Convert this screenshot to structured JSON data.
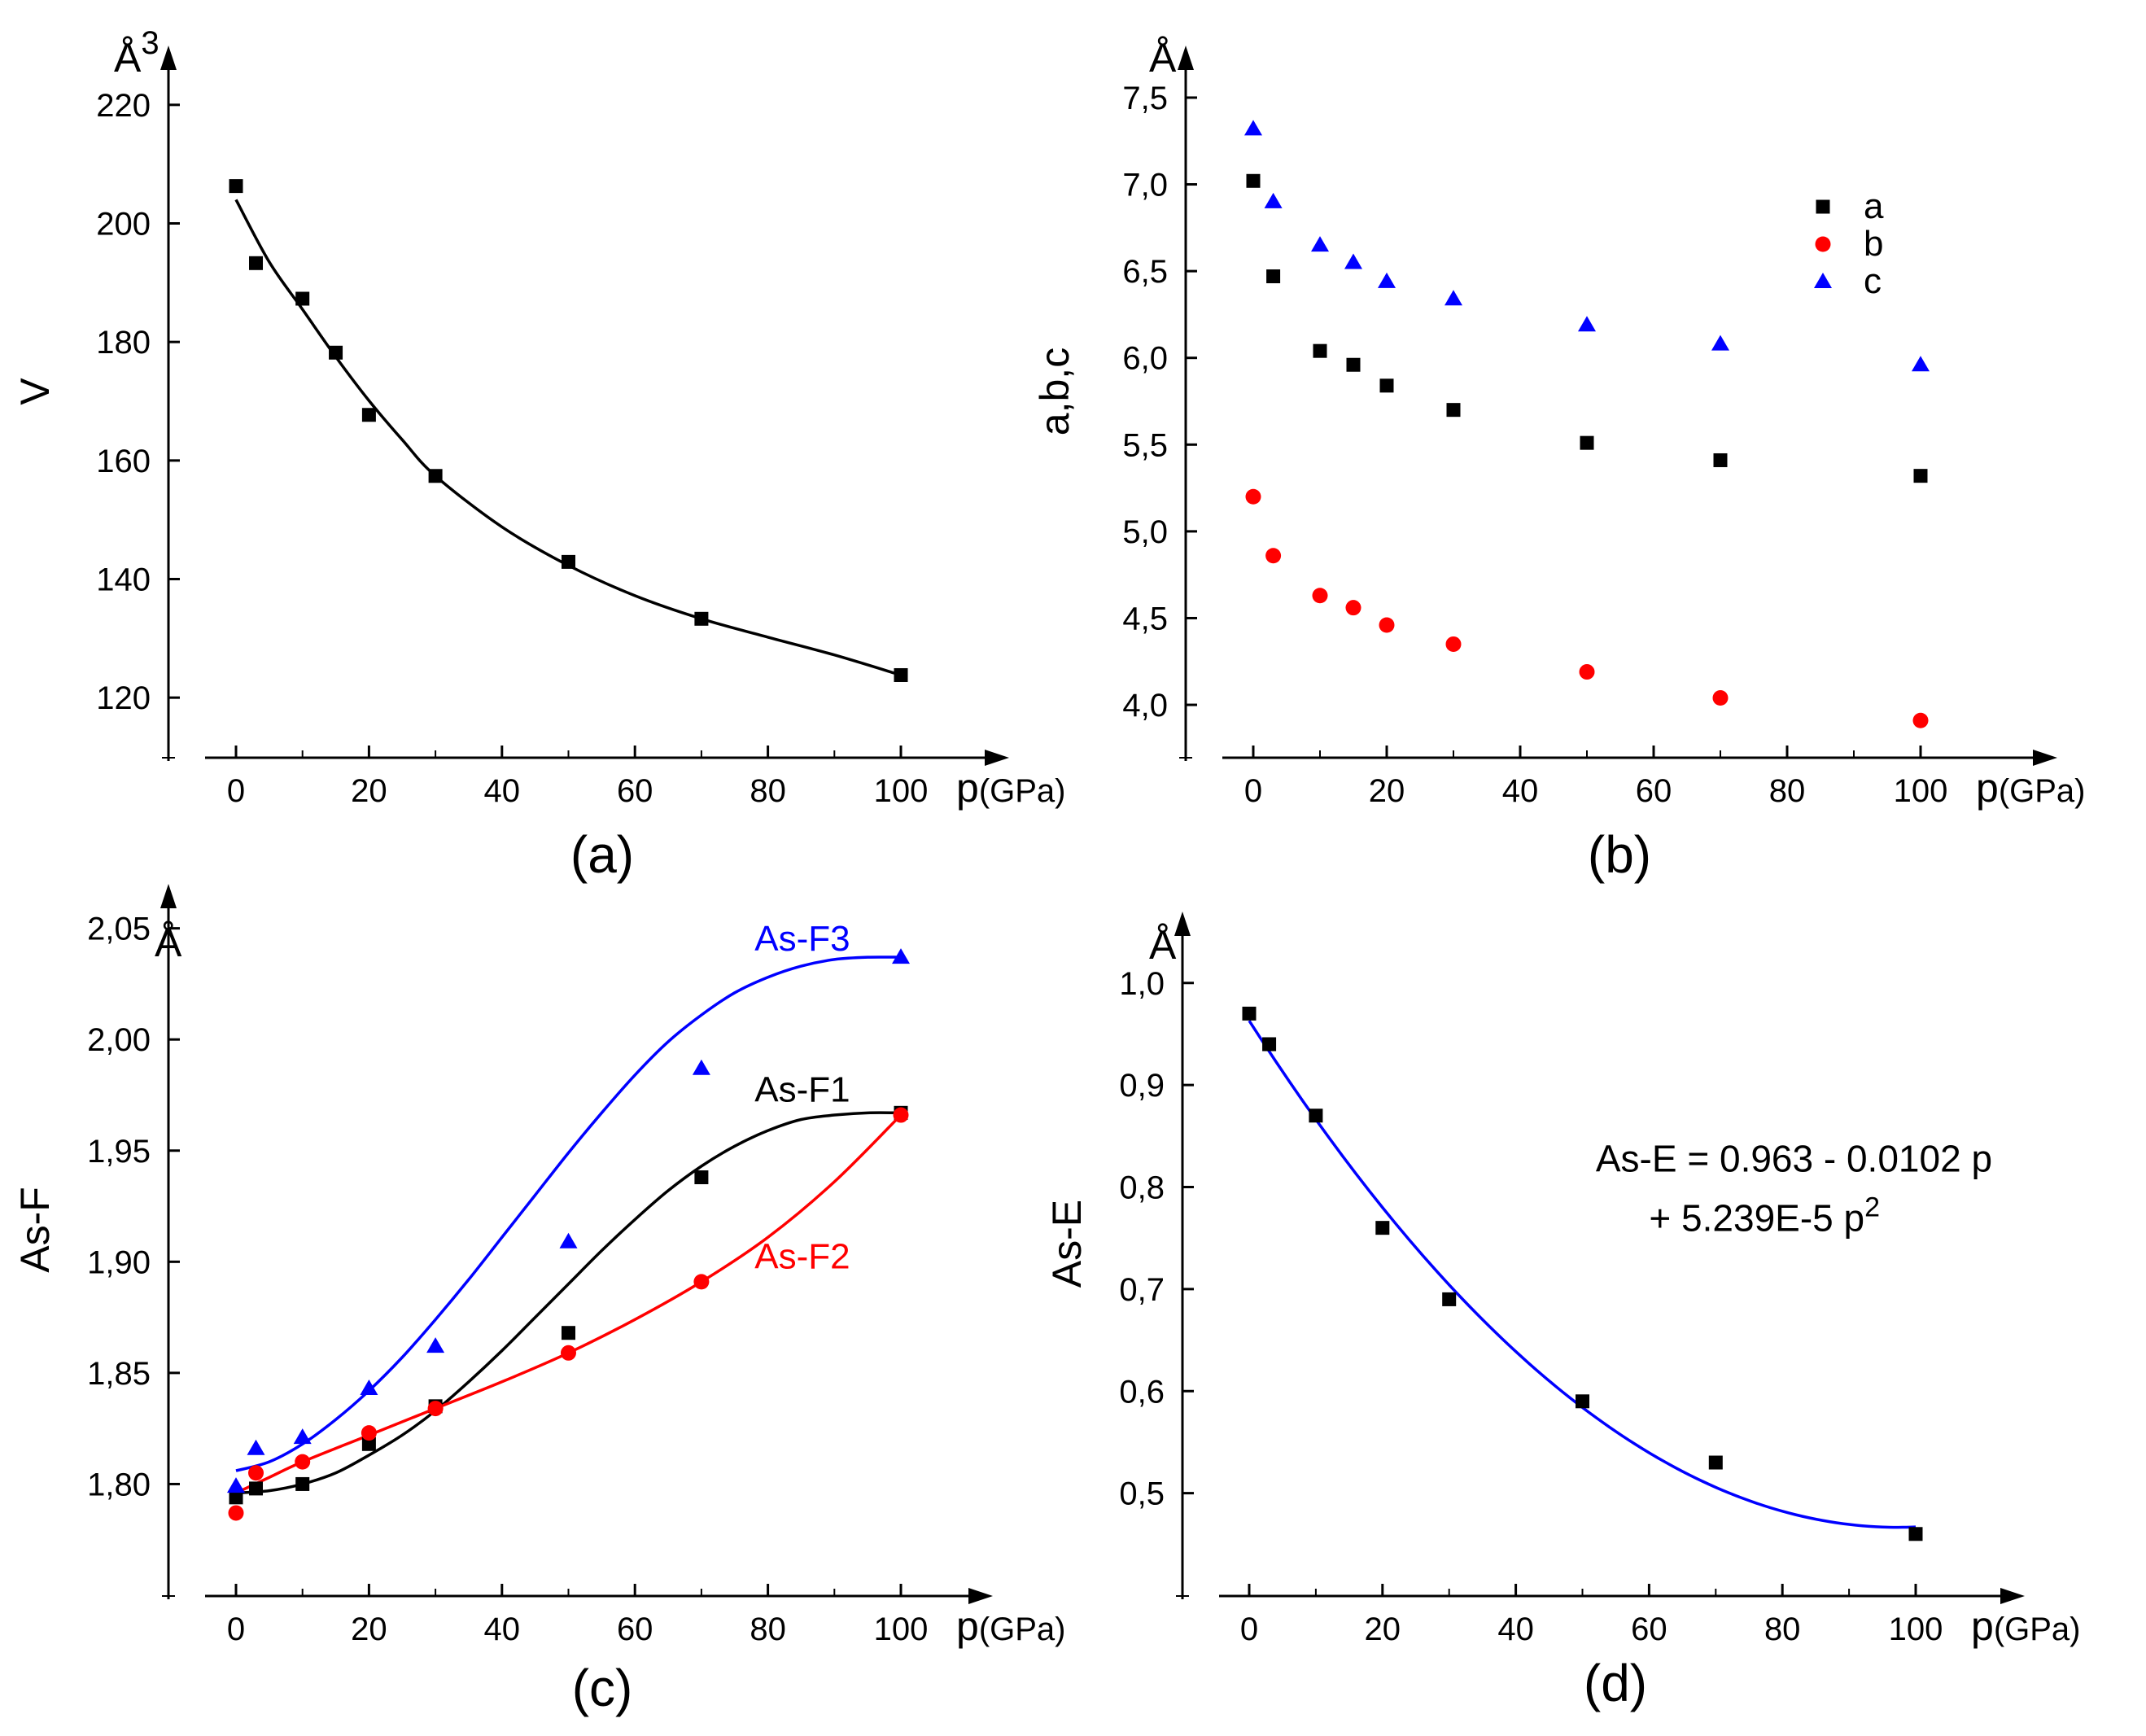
{
  "figure": {
    "panel_labels": [
      "(a)",
      "(b)",
      "(c)",
      "(d)"
    ],
    "x_unit_symbol": "p",
    "x_unit": "(GPa)",
    "angstrom": "Å"
  },
  "chart_data": [
    {
      "id": "a",
      "type": "scatter",
      "panel_label": "(a)",
      "xlabel": "p(GPa)",
      "ylabel": "V",
      "y_unit": "Å3",
      "unit_symbol": "Å",
      "unit_exp": "3",
      "xlim": [
        -10,
        110
      ],
      "ylim": [
        110,
        230
      ],
      "xticks": [
        0,
        20,
        40,
        60,
        80,
        100
      ],
      "yticks": [
        120,
        140,
        160,
        180,
        200,
        220
      ],
      "tick_labels_x": [
        "0",
        "20",
        "40",
        "60",
        "80",
        "100"
      ],
      "tick_labels_y": [
        "120",
        "140",
        "160",
        "180",
        "200",
        "220"
      ],
      "series": [
        {
          "name": "V",
          "color": "#000000",
          "marker": "square",
          "x": [
            0,
            3,
            10,
            15,
            20,
            30,
            50,
            70,
            100
          ],
          "y": [
            206.3,
            193.3,
            187.3,
            178.2,
            167.7,
            157.4,
            142.9,
            133.3,
            123.8
          ],
          "fit": {
            "color": "#000000",
            "x": [
              0,
              5,
              10,
              15,
              20,
              25,
              30,
              40,
              50,
              60,
              70,
              80,
              90,
              100
            ],
            "y": [
              204,
              193.5,
              185.5,
              177.5,
              170.1,
              163.5,
              157.4,
              148.8,
              142.3,
              137.2,
              133.3,
              130.2,
              127.2,
              123.8
            ]
          }
        }
      ]
    },
    {
      "id": "b",
      "type": "scatter",
      "panel_label": "(b)",
      "xlabel": "p(GPa)",
      "ylabel": "a,b,c",
      "y_unit": "Å",
      "unit_symbol": "Å",
      "xlim": [
        -10,
        110
      ],
      "ylim": [
        3.7,
        7.8
      ],
      "xticks": [
        0,
        20,
        40,
        60,
        80,
        100
      ],
      "yticks": [
        4.0,
        4.5,
        5.0,
        5.5,
        6.0,
        6.5,
        7.0,
        7.5
      ],
      "tick_labels_x": [
        "0",
        "20",
        "40",
        "60",
        "80",
        "100"
      ],
      "tick_labels_y": [
        "4,0",
        "4,5",
        "5,0",
        "5,5",
        "6,0",
        "6,5",
        "7,0",
        "7,5"
      ],
      "legend": {
        "position": "top-right",
        "entries": [
          "a",
          "b",
          "c"
        ]
      },
      "series": [
        {
          "name": "a",
          "color": "#000000",
          "marker": "square",
          "x": [
            0,
            3,
            10,
            15,
            20,
            30,
            50,
            70,
            100
          ],
          "y": [
            7.02,
            6.47,
            6.04,
            5.96,
            5.84,
            5.7,
            5.51,
            5.41,
            5.32
          ]
        },
        {
          "name": "b",
          "color": "#ff0000",
          "marker": "circle",
          "x": [
            0,
            3,
            10,
            15,
            20,
            30,
            50,
            70,
            100
          ],
          "y": [
            5.2,
            4.86,
            4.63,
            4.56,
            4.46,
            4.35,
            4.19,
            4.04,
            3.91
          ]
        },
        {
          "name": "c",
          "color": "#0000ff",
          "marker": "triangle",
          "x": [
            0,
            3,
            10,
            15,
            20,
            30,
            50,
            70,
            100
          ],
          "y": [
            7.32,
            6.9,
            6.65,
            6.55,
            6.44,
            6.34,
            6.19,
            6.08,
            5.96
          ]
        }
      ]
    },
    {
      "id": "c",
      "type": "scatter",
      "panel_label": "(c)",
      "xlabel": "p(GPa)",
      "ylabel": "As-F",
      "y_unit": "Å",
      "unit_symbol": "Å",
      "xlim": [
        -10,
        110
      ],
      "ylim": [
        1.75,
        2.07
      ],
      "xticks": [
        0,
        20,
        40,
        60,
        80,
        100
      ],
      "yticks": [
        1.8,
        1.85,
        1.9,
        1.95,
        2.0,
        2.05
      ],
      "tick_labels_x": [
        "0",
        "20",
        "40",
        "60",
        "80",
        "100"
      ],
      "tick_labels_y": [
        "1,80",
        "1,85",
        "1,90",
        "1,95",
        "2,00",
        "2,05"
      ],
      "series": [
        {
          "name": "As-F1",
          "color": "#000000",
          "marker": "square",
          "label_pos": {
            "x": 78,
            "y": 1.972
          },
          "x": [
            0,
            3,
            10,
            20,
            30,
            50,
            70,
            100
          ],
          "y": [
            1.794,
            1.798,
            1.8,
            1.818,
            1.835,
            1.868,
            1.938,
            1.967
          ],
          "fit": {
            "color": "#000000",
            "x": [
              0,
              5,
              10,
              15,
              20,
              25,
              30,
              35,
              40,
              45,
              50,
              55,
              60,
              65,
              70,
              75,
              80,
              85,
              90,
              95,
              100
            ],
            "y": [
              1.796,
              1.797,
              1.8,
              1.805,
              1.813,
              1.822,
              1.833,
              1.846,
              1.86,
              1.875,
              1.89,
              1.905,
              1.919,
              1.932,
              1.943,
              1.952,
              1.959,
              1.964,
              1.966,
              1.967,
              1.967
            ]
          }
        },
        {
          "name": "As-F2",
          "color": "#ff0000",
          "marker": "circle",
          "label_pos": {
            "x": 78,
            "y": 1.897
          },
          "x": [
            0,
            3,
            10,
            20,
            30,
            50,
            70,
            100
          ],
          "y": [
            1.787,
            1.805,
            1.81,
            1.823,
            1.834,
            1.859,
            1.891,
            1.966
          ],
          "fit": {
            "color": "#ff0000",
            "x": [
              0,
              5,
              10,
              20,
              30,
              40,
              50,
              60,
              70,
              80,
              90,
              100
            ],
            "y": [
              1.796,
              1.803,
              1.81,
              1.822,
              1.834,
              1.846,
              1.859,
              1.874,
              1.891,
              1.911,
              1.936,
              1.966
            ]
          }
        },
        {
          "name": "As-F3",
          "color": "#0000ff",
          "marker": "triangle",
          "label_pos": {
            "x": 78,
            "y": 2.04
          },
          "x": [
            0,
            3,
            10,
            20,
            30,
            50,
            70,
            100
          ],
          "y": [
            1.799,
            1.816,
            1.821,
            1.843,
            1.862,
            1.909,
            1.987,
            2.037
          ],
          "fit": {
            "color": "#0000ff",
            "x": [
              0,
              5,
              10,
              15,
              20,
              25,
              30,
              35,
              40,
              45,
              50,
              55,
              60,
              65,
              70,
              75,
              80,
              85,
              90,
              95,
              100
            ],
            "y": [
              1.806,
              1.81,
              1.818,
              1.829,
              1.842,
              1.857,
              1.874,
              1.892,
              1.911,
              1.93,
              1.949,
              1.967,
              1.984,
              1.999,
              2.011,
              2.021,
              2.028,
              2.033,
              2.036,
              2.037,
              2.037
            ]
          }
        }
      ]
    },
    {
      "id": "d",
      "type": "scatter",
      "panel_label": "(d)",
      "xlabel": "p(GPa)",
      "ylabel": "As-E",
      "y_unit": "Å",
      "unit_symbol": "Å",
      "xlim": [
        -10,
        110
      ],
      "ylim": [
        0.4,
        1.07
      ],
      "xticks": [
        0,
        20,
        40,
        60,
        80,
        100
      ],
      "yticks": [
        0.5,
        0.6,
        0.7,
        0.8,
        0.9,
        1.0
      ],
      "tick_labels_x": [
        "0",
        "20",
        "40",
        "60",
        "80",
        "100"
      ],
      "tick_labels_y": [
        "0,5",
        "0,6",
        "0,7",
        "0,8",
        "0,9",
        "1,0"
      ],
      "annotation": {
        "line1": "As-E = 0.963 - 0.0102 p",
        "line2": "+ 5.239E-5 p",
        "line2_exp": "2",
        "pos1": {
          "x": 52,
          "y": 0.815
        },
        "pos2": {
          "x": 60,
          "y": 0.757
        }
      },
      "series": [
        {
          "name": "As-E",
          "color": "#000000",
          "marker": "square",
          "x": [
            0,
            3,
            10,
            20,
            30,
            50,
            70,
            100
          ],
          "y": [
            0.97,
            0.94,
            0.87,
            0.76,
            0.69,
            0.59,
            0.53,
            0.46
          ],
          "fit": {
            "color": "#0000ff",
            "equation": {
              "c0": 0.963,
              "c1": -0.0102,
              "c2": 5.239e-05
            },
            "x_range": [
              0,
              100
            ]
          }
        }
      ]
    }
  ]
}
